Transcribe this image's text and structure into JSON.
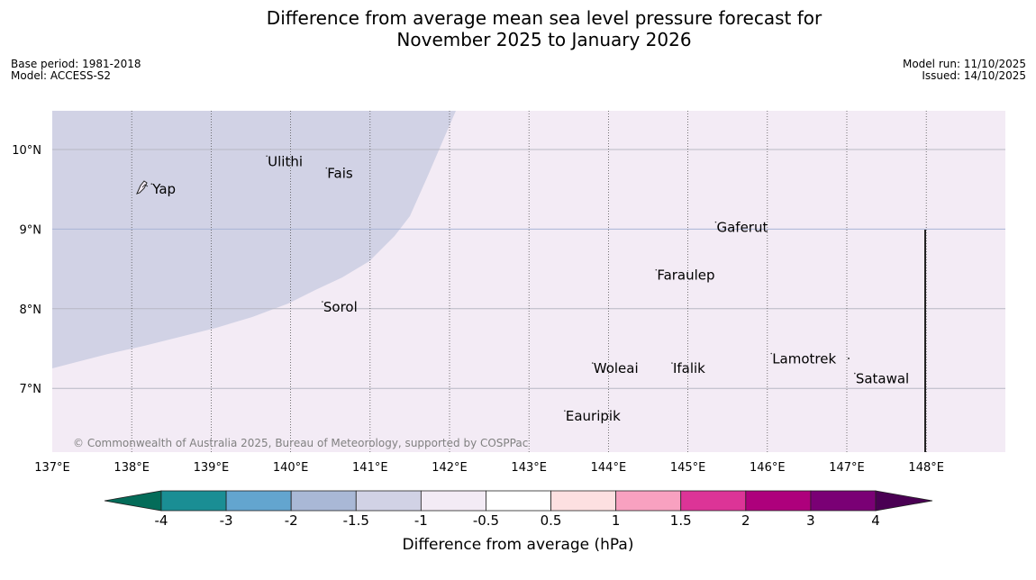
{
  "title_line1": "Difference from average mean sea level pressure forecast for",
  "title_line2": "November 2025 to January 2026",
  "base_period": "Base period: 1981-2018",
  "model": "Model: ACCESS-S2",
  "model_run": "Model run: 11/10/2025",
  "issued": "Issued: 14/10/2025",
  "copyright": "© Commonwealth of Australia 2025, Bureau of Meteorology, supported by COSPPac",
  "places": [
    {
      "name": "Yap",
      "lon": 138.25,
      "lat": 9.5
    },
    {
      "name": "Ulithi",
      "lon": 139.7,
      "lat": 9.85
    },
    {
      "name": "Fais",
      "lon": 140.45,
      "lat": 9.7
    },
    {
      "name": "Gaferut",
      "lon": 145.35,
      "lat": 9.02
    },
    {
      "name": "Faraulep",
      "lon": 144.6,
      "lat": 8.42
    },
    {
      "name": "Sorol",
      "lon": 140.4,
      "lat": 8.02
    },
    {
      "name": "Lamotrek",
      "lon": 146.05,
      "lat": 7.37
    },
    {
      "name": "Woleai",
      "lon": 143.8,
      "lat": 7.25
    },
    {
      "name": "Ifalik",
      "lon": 144.8,
      "lat": 7.25
    },
    {
      "name": "Satawal",
      "lon": 147.1,
      "lat": 7.12
    },
    {
      "name": "Eauripik",
      "lon": 143.45,
      "lat": 6.65
    }
  ],
  "lat_ticks": [
    {
      "label": "10°N",
      "v": 10
    },
    {
      "label": "9°N",
      "v": 9
    },
    {
      "label": "8°N",
      "v": 8
    },
    {
      "label": "7°N",
      "v": 7
    }
  ],
  "lon_ticks": [
    {
      "label": "137°E",
      "v": 137
    },
    {
      "label": "138°E",
      "v": 138
    },
    {
      "label": "139°E",
      "v": 139
    },
    {
      "label": "140°E",
      "v": 140
    },
    {
      "label": "141°E",
      "v": 141
    },
    {
      "label": "142°E",
      "v": 142
    },
    {
      "label": "143°E",
      "v": 143
    },
    {
      "label": "144°E",
      "v": 144
    },
    {
      "label": "145°E",
      "v": 145
    },
    {
      "label": "146°E",
      "v": 146
    },
    {
      "label": "147°E",
      "v": 147
    },
    {
      "label": "148°E",
      "v": 148
    }
  ],
  "colorbar": {
    "title": "Difference from average (hPa)",
    "labels": [
      "-4",
      "-3",
      "-2",
      "-1.5",
      "-1",
      "-0.5",
      "0.5",
      "1",
      "1.5",
      "2",
      "3",
      "4"
    ],
    "colors": [
      "#1a8e94",
      "#63a5cf",
      "#a9b8d6",
      "#d1d2e5",
      "#f3ebf5",
      "#ffffff",
      "#fde0e1",
      "#f8a1c0",
      "#dc3497",
      "#ae007c",
      "#7a0075"
    ],
    "low_extend": "#046c59",
    "high_extend": "#4a0053"
  },
  "fills": {
    "ocean": "#f3ebf5",
    "negative_region": "#d1d2e5",
    "gridline": "#b8b8c4",
    "nine_north_line": "#a8b4d6"
  }
}
